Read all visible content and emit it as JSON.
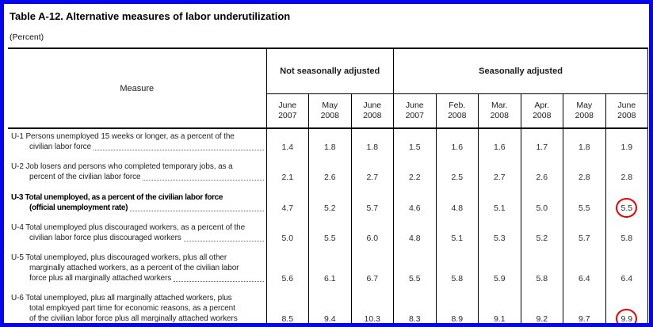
{
  "title": "Table A-12.  Alternative measures of labor underutilization",
  "subtitle": "(Percent)",
  "colors": {
    "frame_border_blue": "#0505f0",
    "annotation_circle_red": "#e60000",
    "table_rules_black": "#000000"
  },
  "table": {
    "measure_header": "Measure",
    "groups": [
      {
        "label": "Not seasonally adjusted"
      },
      {
        "label": "Seasonally adjusted"
      }
    ],
    "columns_nsa": [
      {
        "month": "June",
        "year": "2007"
      },
      {
        "month": "May",
        "year": "2008"
      },
      {
        "month": "June",
        "year": "2008"
      }
    ],
    "columns_sa": [
      {
        "month": "June",
        "year": "2007"
      },
      {
        "month": "Feb.",
        "year": "2008"
      },
      {
        "month": "Mar.",
        "year": "2008"
      },
      {
        "month": "Apr.",
        "year": "2008"
      },
      {
        "month": "May",
        "year": "2008"
      },
      {
        "month": "June",
        "year": "2008"
      }
    ]
  },
  "rows": [
    {
      "id": "U-1",
      "bold": false,
      "lines": [
        "U-1 Persons unemployed 15 weeks or longer, as a percent of the",
        "civilian labor force"
      ],
      "leader": true,
      "nsa": [
        "1.4",
        "1.8",
        "1.8"
      ],
      "sa": [
        "1.5",
        "1.6",
        "1.6",
        "1.7",
        "1.8",
        "1.9"
      ]
    },
    {
      "id": "U-2",
      "bold": false,
      "lines": [
        "U-2 Job losers and persons who completed temporary jobs, as a",
        "percent of the civilian labor force"
      ],
      "leader": true,
      "nsa": [
        "2.1",
        "2.6",
        "2.7"
      ],
      "sa": [
        "2.2",
        "2.5",
        "2.7",
        "2.6",
        "2.8",
        "2.8"
      ]
    },
    {
      "id": "U-3",
      "bold": true,
      "lines": [
        "U-3 Total unemployed, as a percent of the civilian labor force",
        "(official unemployment rate)"
      ],
      "leader": true,
      "nsa": [
        "4.7",
        "5.2",
        "5.7"
      ],
      "sa": [
        "4.6",
        "4.8",
        "5.1",
        "5.0",
        "5.5",
        "5.5"
      ],
      "circled_last_sa": true
    },
    {
      "id": "U-4",
      "bold": false,
      "lines": [
        "U-4 Total unemployed plus discouraged workers, as a percent of the",
        "civilian labor force plus discouraged workers"
      ],
      "leader": true,
      "nsa": [
        "5.0",
        "5.5",
        "6.0"
      ],
      "sa": [
        "4.8",
        "5.1",
        "5.3",
        "5.2",
        "5.7",
        "5.8"
      ]
    },
    {
      "id": "U-5",
      "bold": false,
      "lines": [
        "U-5 Total unemployed, plus discouraged workers, plus all other",
        "marginally attached workers, as a percent of the civilian labor",
        "force plus all marginally attached workers"
      ],
      "leader": true,
      "nsa": [
        "5.6",
        "6.1",
        "6.7"
      ],
      "sa": [
        "5.5",
        "5.8",
        "5.9",
        "5.8",
        "6.4",
        "6.4"
      ]
    },
    {
      "id": "U-6",
      "bold": false,
      "lines": [
        "U-6 Total unemployed, plus all marginally attached workers, plus",
        "total employed part time for economic reasons, as a percent",
        "of the civilian labor force plus all marginally attached workers"
      ],
      "leader": false,
      "nsa": [
        "8.5",
        "9.4",
        "10.3"
      ],
      "sa": [
        "8.3",
        "8.9",
        "9.1",
        "9.2",
        "9.7",
        "9.9"
      ],
      "circled_last_sa": true
    }
  ],
  "annotations": {
    "circled_cells": [
      {
        "row": "U-3",
        "column": "Seasonally adjusted June 2008",
        "value": "5.5"
      },
      {
        "row": "U-6",
        "column": "Seasonally adjusted June 2008",
        "value": "9.9"
      }
    ]
  }
}
